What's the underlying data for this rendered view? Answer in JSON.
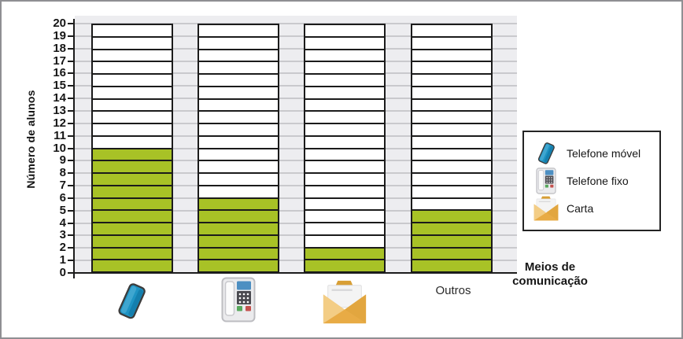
{
  "chart_data": {
    "type": "bar",
    "title": "",
    "categories": [
      "Telefone móvel",
      "Telefone fixo",
      "Carta",
      "Outros"
    ],
    "values": [
      10,
      6,
      2,
      5
    ],
    "xlabel": "Meios de comunicação",
    "ylabel": "Número de alunos",
    "ylim": [
      0,
      20
    ],
    "yticks": [
      0,
      1,
      2,
      3,
      4,
      5,
      6,
      7,
      8,
      9,
      10,
      11,
      12,
      13,
      14,
      15,
      16,
      17,
      18,
      19,
      20
    ],
    "grid": true,
    "legend_position": "right",
    "bar_fill_color": "#a8c226",
    "bar_empty_color": "#ffffff"
  },
  "axes": {
    "ylabel": "Número de alunos",
    "xlabel": "Meios de comunicação"
  },
  "bars": [
    {
      "category": "Telefone móvel",
      "slug": "telefone-movel",
      "icon": "mobile-phone-icon",
      "value": 10
    },
    {
      "category": "Telefone fixo",
      "slug": "telefone-fixo",
      "icon": "landline-phone-icon",
      "value": 6
    },
    {
      "category": "Carta",
      "slug": "carta",
      "icon": "envelope-icon",
      "value": 2
    },
    {
      "category": "Outros",
      "slug": "outros",
      "icon": null,
      "text_label": "Outros",
      "value": 5
    }
  ],
  "legend": {
    "items": [
      {
        "icon": "mobile-phone-icon",
        "label": "Telefone móvel"
      },
      {
        "icon": "landline-phone-icon",
        "label": "Telefone fixo"
      },
      {
        "icon": "envelope-icon",
        "label": "Carta"
      }
    ]
  },
  "colors": {
    "bar_fill": "#a8c226",
    "plot_background": "#ededf0",
    "gridline": "#c9c9cd",
    "axis": "#1c1c1c",
    "mobile_phone_blue": "#1e93c3",
    "envelope_gold": "#e5a83e"
  }
}
